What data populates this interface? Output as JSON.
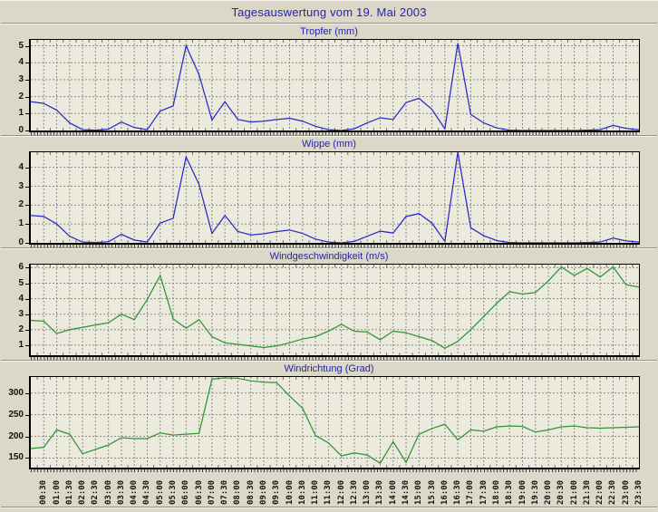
{
  "page": {
    "title": "Tagesauswertung vom 19. Mai 2003",
    "title_color": "#2424ae",
    "background_color": "#dbd8c9",
    "plot_background_color": "#eceadc",
    "grid_color": "#8a8a8a"
  },
  "chart_data": {
    "type": "line",
    "x_start": "00:00",
    "x_step_minutes": 30,
    "grid": "dashed",
    "legend_position": "none",
    "x_labels": [
      "00:30",
      "01:00",
      "01:30",
      "02:00",
      "02:30",
      "03:00",
      "03:30",
      "04:00",
      "04:30",
      "05:00",
      "05:30",
      "06:00",
      "06:30",
      "07:00",
      "07:30",
      "08:00",
      "08:30",
      "09:00",
      "09:30",
      "10:00",
      "10:30",
      "11:00",
      "11:30",
      "12:00",
      "12:30",
      "13:00",
      "13:30",
      "14:00",
      "14:30",
      "15:00",
      "15:30",
      "16:00",
      "16:30",
      "17:00",
      "17:30",
      "18:00",
      "18:30",
      "19:00",
      "19:30",
      "20:00",
      "20:30",
      "21:00",
      "21:30",
      "22:00",
      "22:30",
      "23:00",
      "23:30"
    ],
    "charts": [
      {
        "title": "Tropfer (mm)",
        "color": "#2a2ac8",
        "yticks": [
          0,
          1,
          2,
          3,
          4,
          5
        ],
        "ymin": 0,
        "ymax": 5.35,
        "values": [
          1.7,
          1.6,
          1.2,
          0.45,
          0.05,
          0.02,
          0.08,
          0.5,
          0.18,
          0.05,
          1.15,
          1.45,
          5.0,
          3.3,
          0.62,
          1.7,
          0.65,
          0.5,
          0.55,
          0.65,
          0.72,
          0.55,
          0.25,
          0.05,
          0.0,
          0.1,
          0.45,
          0.75,
          0.65,
          1.65,
          1.9,
          1.25,
          0.1,
          5.15,
          0.95,
          0.45,
          0.15,
          0.02,
          0.0,
          0.0,
          0.0,
          0.0,
          0.0,
          0.02,
          0.05,
          0.3,
          0.12,
          0.05
        ]
      },
      {
        "title": "Wippe (mm)",
        "color": "#2a2ac8",
        "yticks": [
          0,
          1,
          2,
          3,
          4
        ],
        "ymin": 0,
        "ymax": 4.8,
        "values": [
          1.45,
          1.4,
          1.0,
          0.35,
          0.04,
          0.02,
          0.06,
          0.45,
          0.15,
          0.04,
          1.05,
          1.3,
          4.55,
          3.1,
          0.5,
          1.45,
          0.6,
          0.42,
          0.48,
          0.6,
          0.68,
          0.5,
          0.2,
          0.04,
          0.0,
          0.08,
          0.35,
          0.62,
          0.52,
          1.4,
          1.55,
          1.05,
          0.08,
          4.8,
          0.8,
          0.38,
          0.12,
          0.02,
          0.0,
          0.0,
          0.0,
          0.0,
          0.0,
          0.02,
          0.04,
          0.25,
          0.1,
          0.04
        ]
      },
      {
        "title": "Windgeschwindigkeit (m/s)",
        "color": "#2f9434",
        "yticks": [
          1,
          2,
          3,
          4,
          5,
          6
        ],
        "ymin": 0.35,
        "ymax": 6.2,
        "values": [
          2.6,
          2.55,
          1.75,
          2.0,
          2.15,
          2.3,
          2.45,
          3.0,
          2.65,
          3.95,
          5.5,
          2.7,
          2.1,
          2.65,
          1.55,
          1.15,
          1.05,
          0.95,
          0.85,
          0.95,
          1.15,
          1.4,
          1.55,
          1.9,
          2.35,
          1.9,
          1.85,
          1.35,
          1.9,
          1.8,
          1.55,
          1.3,
          0.8,
          1.25,
          2.0,
          2.85,
          3.7,
          4.45,
          4.3,
          4.4,
          5.15,
          6.05,
          5.5,
          5.95,
          5.4,
          6.05,
          4.9,
          4.75
        ]
      },
      {
        "title": "Windrichtung (Grad)",
        "color": "#2f9434",
        "yticks": [
          150,
          200,
          250,
          300
        ],
        "ymin": 128,
        "ymax": 337,
        "values": [
          172,
          175,
          215,
          205,
          160,
          170,
          180,
          197,
          195,
          195,
          208,
          203,
          205,
          207,
          332,
          335,
          334,
          328,
          325,
          324,
          293,
          265,
          202,
          185,
          155,
          162,
          157,
          138,
          188,
          140,
          205,
          218,
          228,
          192,
          215,
          212,
          222,
          224,
          223,
          210,
          215,
          222,
          224,
          220,
          219,
          220,
          221,
          222
        ]
      }
    ]
  }
}
